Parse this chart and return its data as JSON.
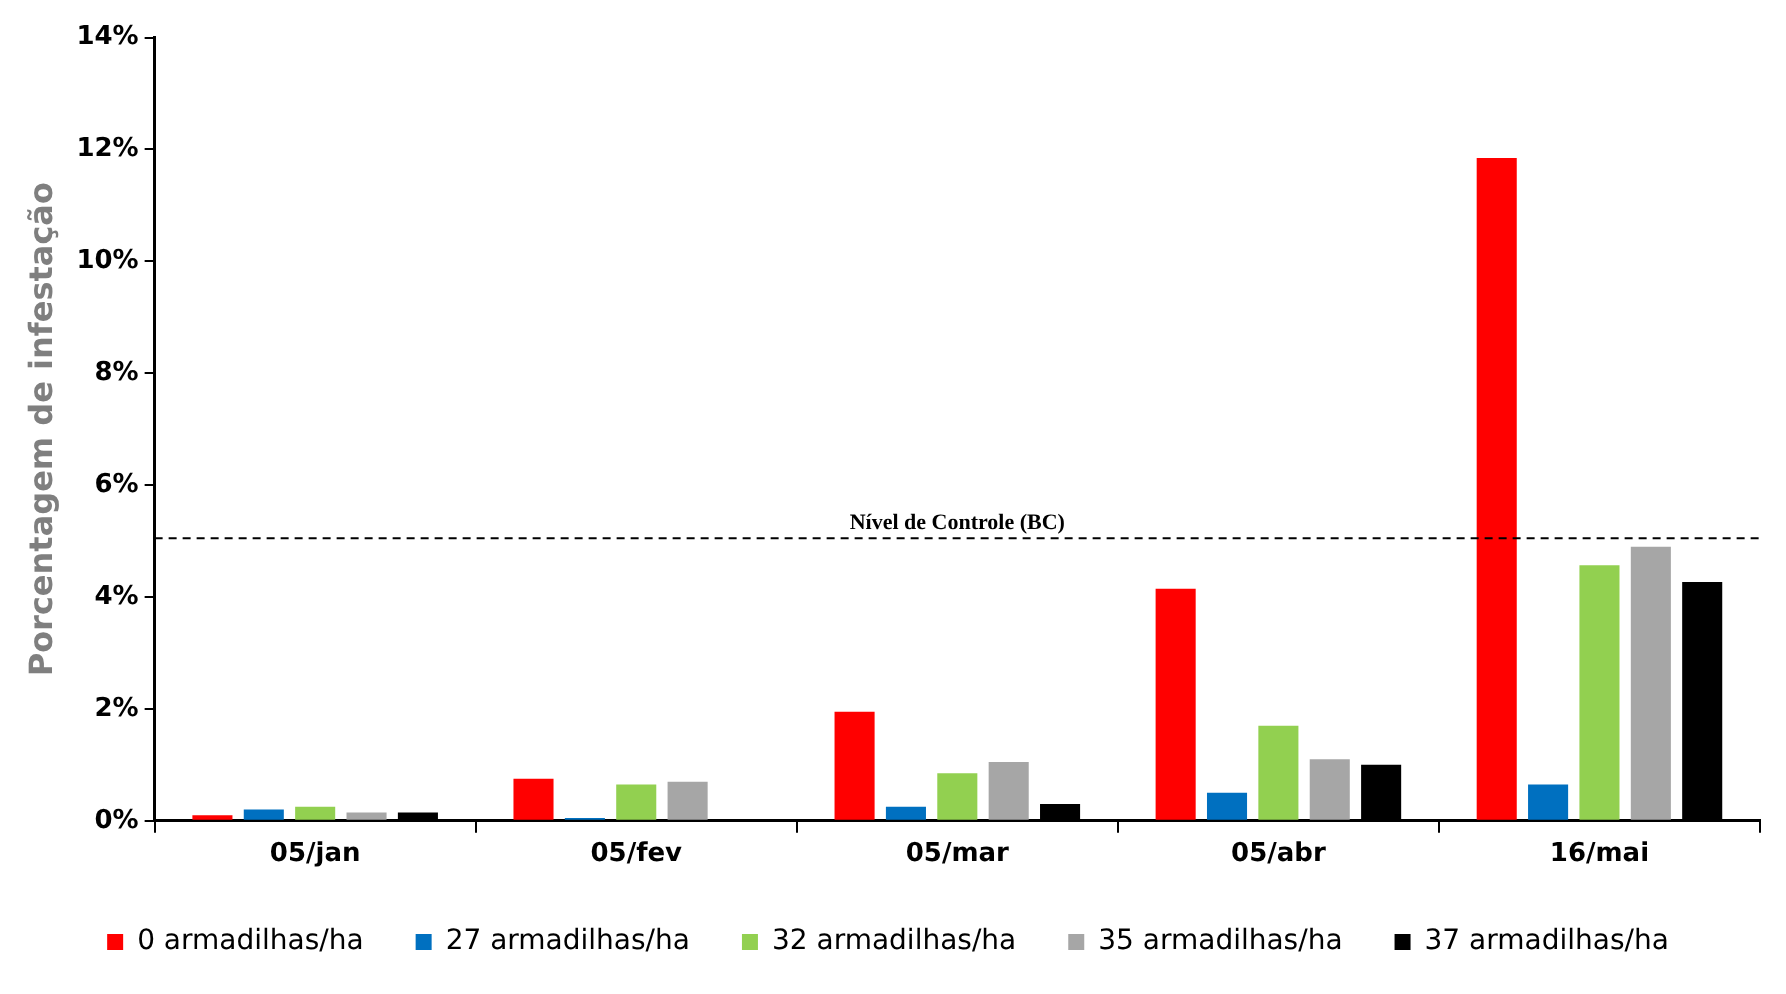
{
  "chart_data": {
    "type": "bar",
    "ylabel": "Porcentagem de infestação",
    "categories": [
      "05/jan",
      "05/fev",
      "05/mar",
      "05/abr",
      "16/mai"
    ],
    "series": [
      {
        "name": "0 armadilhas/ha",
        "color": "#ff0000",
        "values": [
          0.1,
          0.75,
          1.95,
          4.15,
          11.85
        ]
      },
      {
        "name": "27 armadilhas/ha",
        "color": "#0070c0",
        "values": [
          0.2,
          0.05,
          0.25,
          0.5,
          0.65
        ]
      },
      {
        "name": "32 armadilhas/ha",
        "color": "#92d050",
        "values": [
          0.25,
          0.65,
          0.85,
          1.7,
          4.57
        ]
      },
      {
        "name": "35 armadilhas/ha",
        "color": "#a6a6a6",
        "values": [
          0.15,
          0.7,
          1.05,
          1.1,
          4.9
        ]
      },
      {
        "name": "37 armadilhas/ha",
        "color": "#000000",
        "values": [
          0.15,
          null,
          0.3,
          1.0,
          4.27
        ]
      }
    ],
    "ylim": [
      0,
      14
    ],
    "yticks": [
      {
        "value": 0,
        "label": "0%"
      },
      {
        "value": 2,
        "label": "2%"
      },
      {
        "value": 4,
        "label": "4%"
      },
      {
        "value": 6,
        "label": "6%"
      },
      {
        "value": 8,
        "label": "8%"
      },
      {
        "value": 10,
        "label": "10%"
      },
      {
        "value": 12,
        "label": "12%"
      },
      {
        "value": 14,
        "label": "14%"
      }
    ],
    "ref_lines": [
      {
        "axis": "y",
        "value": 5.05,
        "label": "Nível de Controle (BC)",
        "color": "#000000",
        "line_style": "dashed"
      }
    ],
    "grid": false,
    "legend": "bottom"
  }
}
